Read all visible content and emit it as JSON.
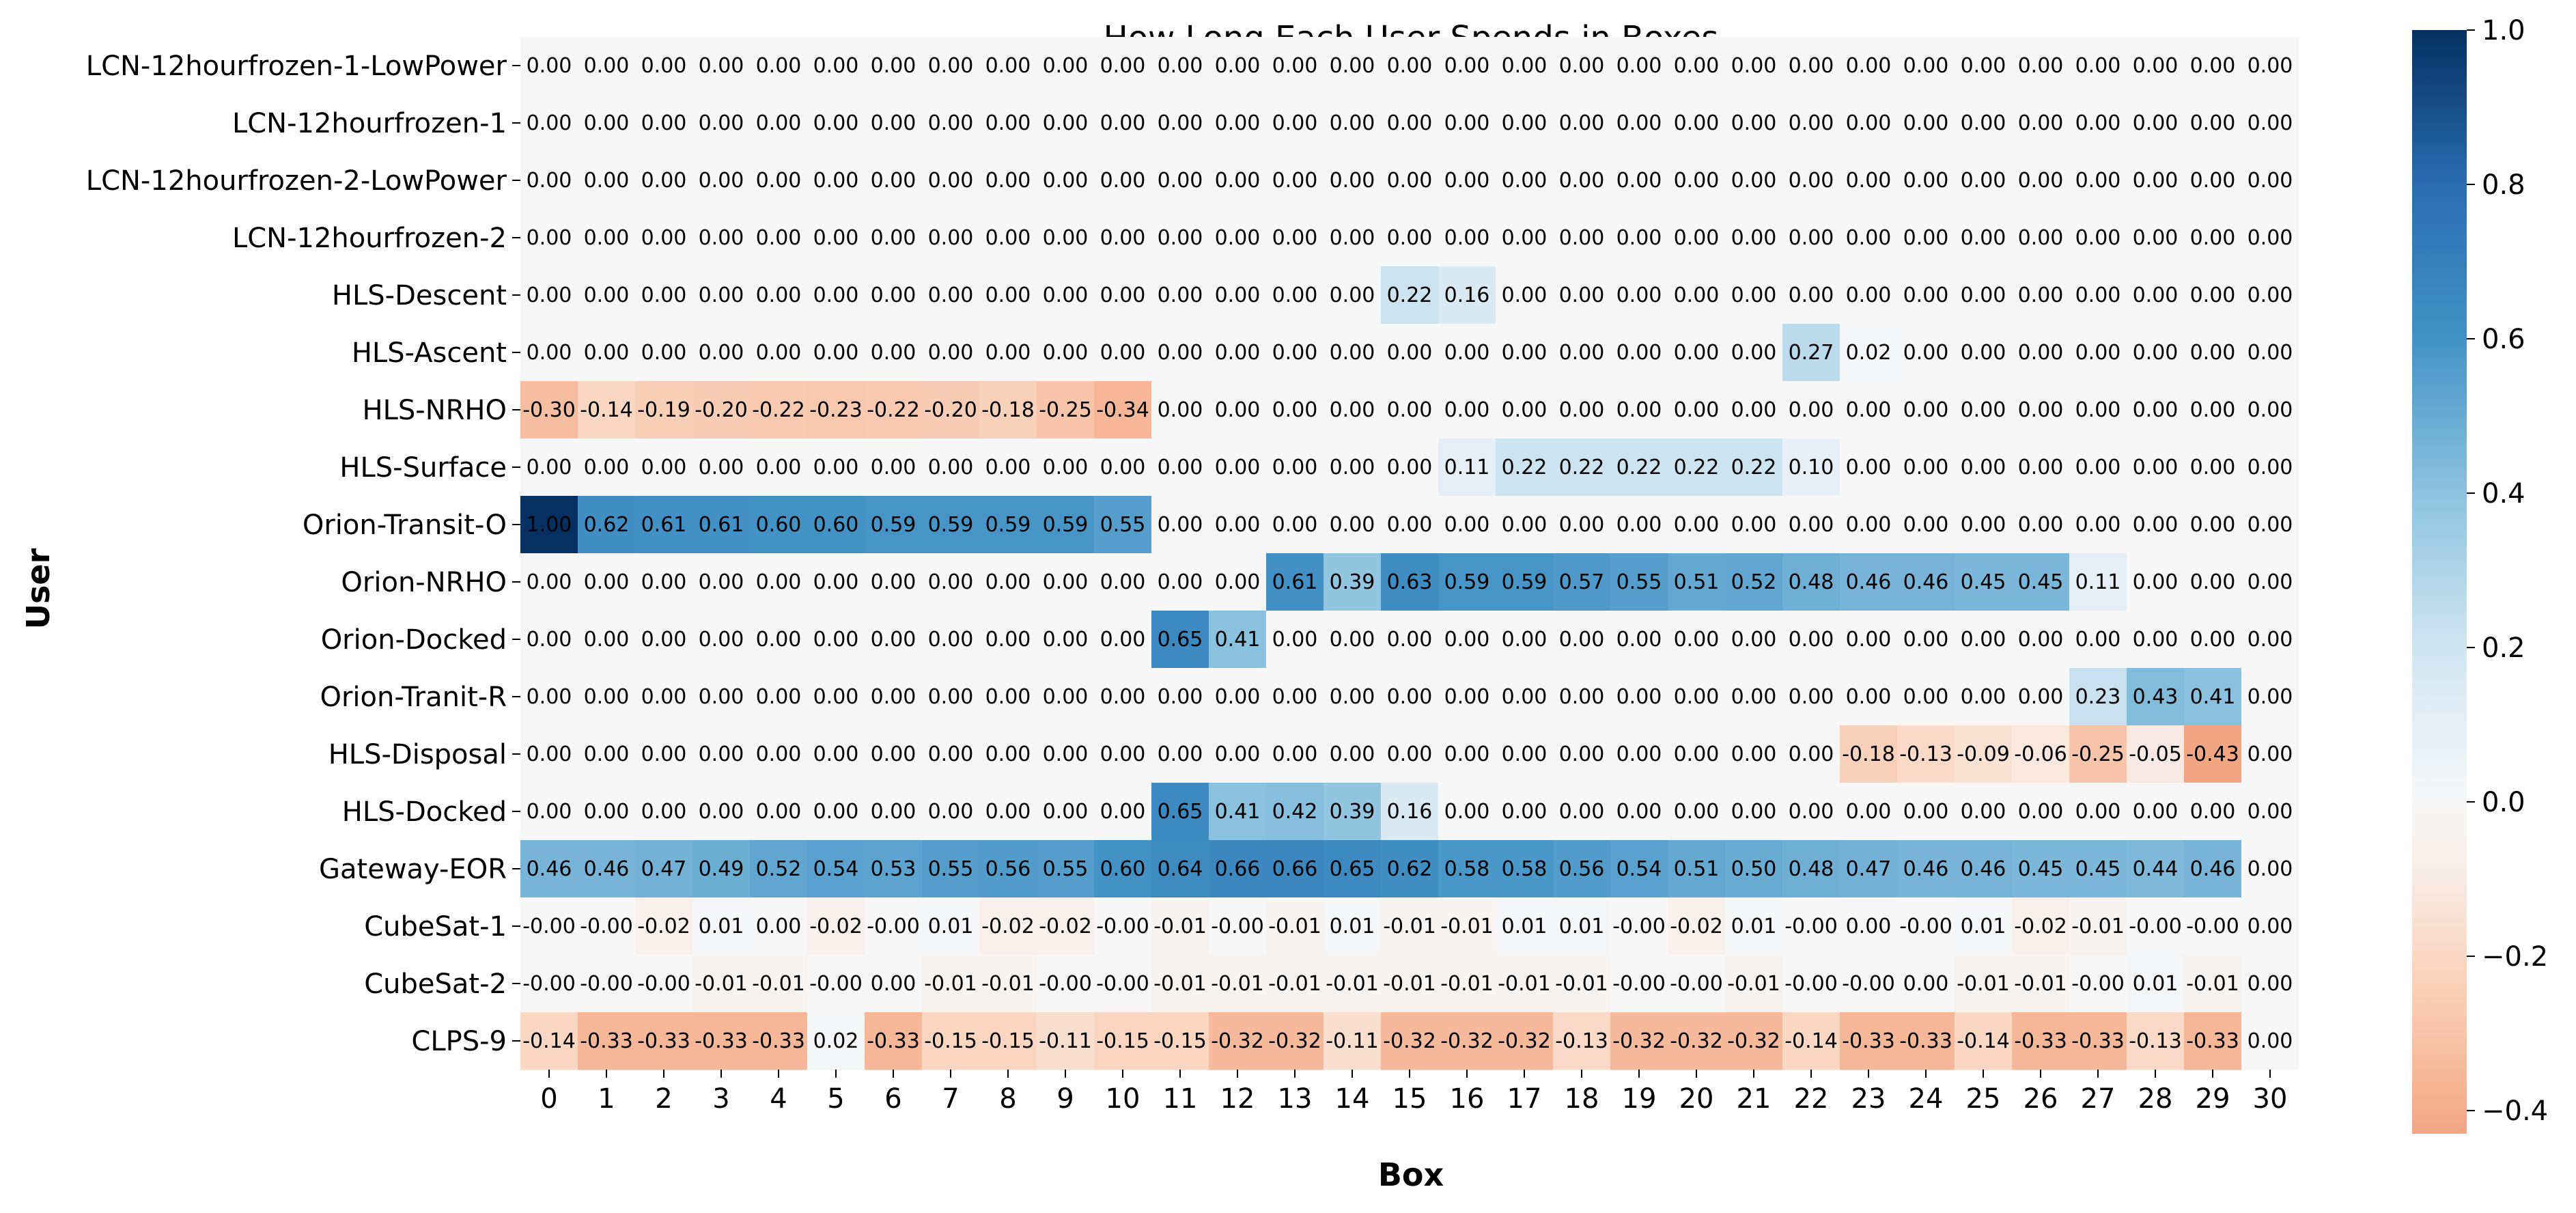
{
  "chart_data": {
    "type": "heatmap",
    "title": "How Long Each User Spends in Boxes",
    "xlabel": "Box",
    "ylabel": "User",
    "grid": false,
    "colorbar": {
      "position": "right",
      "vmin": -0.43,
      "vmax": 1.0,
      "ticks": [
        "1.0",
        "0.8",
        "0.6",
        "0.4",
        "0.2",
        "0.0",
        "-0.2",
        "-0.4"
      ],
      "tick_values": [
        1.0,
        0.8,
        0.6,
        0.4,
        0.2,
        0.0,
        -0.2,
        -0.4
      ],
      "colormap": "diverging orange-white-blue"
    },
    "x_categories": [
      "0",
      "1",
      "2",
      "3",
      "4",
      "5",
      "6",
      "7",
      "8",
      "9",
      "10",
      "11",
      "12",
      "13",
      "14",
      "15",
      "16",
      "17",
      "18",
      "19",
      "20",
      "21",
      "22",
      "23",
      "24",
      "25",
      "26",
      "27",
      "28",
      "29",
      "30"
    ],
    "y_categories": [
      "LCN-12hourfrozen-1-LowPower",
      "LCN-12hourfrozen-1",
      "LCN-12hourfrozen-2-LowPower",
      "LCN-12hourfrozen-2",
      "HLS-Descent",
      "HLS-Ascent",
      "HLS-NRHO",
      "HLS-Surface",
      "Orion-Transit-O",
      "Orion-NRHO",
      "Orion-Docked",
      "Orion-Tranit-R",
      "HLS-Disposal",
      "HLS-Docked",
      "Gateway-EOR",
      "CubeSat-1",
      "CubeSat-2",
      "CLPS-9"
    ],
    "labels": [
      [
        "0.00",
        "0.00",
        "0.00",
        "0.00",
        "0.00",
        "0.00",
        "0.00",
        "0.00",
        "0.00",
        "0.00",
        "0.00",
        "0.00",
        "0.00",
        "0.00",
        "0.00",
        "0.00",
        "0.00",
        "0.00",
        "0.00",
        "0.00",
        "0.00",
        "0.00",
        "0.00",
        "0.00",
        "0.00",
        "0.00",
        "0.00",
        "0.00",
        "0.00",
        "0.00",
        "0.00"
      ],
      [
        "0.00",
        "0.00",
        "0.00",
        "0.00",
        "0.00",
        "0.00",
        "0.00",
        "0.00",
        "0.00",
        "0.00",
        "0.00",
        "0.00",
        "0.00",
        "0.00",
        "0.00",
        "0.00",
        "0.00",
        "0.00",
        "0.00",
        "0.00",
        "0.00",
        "0.00",
        "0.00",
        "0.00",
        "0.00",
        "0.00",
        "0.00",
        "0.00",
        "0.00",
        "0.00",
        "0.00"
      ],
      [
        "0.00",
        "0.00",
        "0.00",
        "0.00",
        "0.00",
        "0.00",
        "0.00",
        "0.00",
        "0.00",
        "0.00",
        "0.00",
        "0.00",
        "0.00",
        "0.00",
        "0.00",
        "0.00",
        "0.00",
        "0.00",
        "0.00",
        "0.00",
        "0.00",
        "0.00",
        "0.00",
        "0.00",
        "0.00",
        "0.00",
        "0.00",
        "0.00",
        "0.00",
        "0.00",
        "0.00"
      ],
      [
        "0.00",
        "0.00",
        "0.00",
        "0.00",
        "0.00",
        "0.00",
        "0.00",
        "0.00",
        "0.00",
        "0.00",
        "0.00",
        "0.00",
        "0.00",
        "0.00",
        "0.00",
        "0.00",
        "0.00",
        "0.00",
        "0.00",
        "0.00",
        "0.00",
        "0.00",
        "0.00",
        "0.00",
        "0.00",
        "0.00",
        "0.00",
        "0.00",
        "0.00",
        "0.00",
        "0.00"
      ],
      [
        "0.00",
        "0.00",
        "0.00",
        "0.00",
        "0.00",
        "0.00",
        "0.00",
        "0.00",
        "0.00",
        "0.00",
        "0.00",
        "0.00",
        "0.00",
        "0.00",
        "0.00",
        "0.22",
        "0.16",
        "0.00",
        "0.00",
        "0.00",
        "0.00",
        "0.00",
        "0.00",
        "0.00",
        "0.00",
        "0.00",
        "0.00",
        "0.00",
        "0.00",
        "0.00",
        "0.00"
      ],
      [
        "0.00",
        "0.00",
        "0.00",
        "0.00",
        "0.00",
        "0.00",
        "0.00",
        "0.00",
        "0.00",
        "0.00",
        "0.00",
        "0.00",
        "0.00",
        "0.00",
        "0.00",
        "0.00",
        "0.00",
        "0.00",
        "0.00",
        "0.00",
        "0.00",
        "0.00",
        "0.27",
        "0.02",
        "0.00",
        "0.00",
        "0.00",
        "0.00",
        "0.00",
        "0.00",
        "0.00"
      ],
      [
        "-0.30",
        "-0.14",
        "-0.19",
        "-0.20",
        "-0.22",
        "-0.23",
        "-0.22",
        "-0.20",
        "-0.18",
        "-0.25",
        "-0.34",
        "0.00",
        "0.00",
        "0.00",
        "0.00",
        "0.00",
        "0.00",
        "0.00",
        "0.00",
        "0.00",
        "0.00",
        "0.00",
        "0.00",
        "0.00",
        "0.00",
        "0.00",
        "0.00",
        "0.00",
        "0.00",
        "0.00",
        "0.00"
      ],
      [
        "0.00",
        "0.00",
        "0.00",
        "0.00",
        "0.00",
        "0.00",
        "0.00",
        "0.00",
        "0.00",
        "0.00",
        "0.00",
        "0.00",
        "0.00",
        "0.00",
        "0.00",
        "0.00",
        "0.11",
        "0.22",
        "0.22",
        "0.22",
        "0.22",
        "0.22",
        "0.10",
        "0.00",
        "0.00",
        "0.00",
        "0.00",
        "0.00",
        "0.00",
        "0.00",
        "0.00"
      ],
      [
        "1.00",
        "0.62",
        "0.61",
        "0.61",
        "0.60",
        "0.60",
        "0.59",
        "0.59",
        "0.59",
        "0.59",
        "0.55",
        "0.00",
        "0.00",
        "0.00",
        "0.00",
        "0.00",
        "0.00",
        "0.00",
        "0.00",
        "0.00",
        "0.00",
        "0.00",
        "0.00",
        "0.00",
        "0.00",
        "0.00",
        "0.00",
        "0.00",
        "0.00",
        "0.00",
        "0.00"
      ],
      [
        "0.00",
        "0.00",
        "0.00",
        "0.00",
        "0.00",
        "0.00",
        "0.00",
        "0.00",
        "0.00",
        "0.00",
        "0.00",
        "0.00",
        "0.00",
        "0.61",
        "0.39",
        "0.63",
        "0.59",
        "0.59",
        "0.57",
        "0.55",
        "0.51",
        "0.52",
        "0.48",
        "0.46",
        "0.46",
        "0.45",
        "0.45",
        "0.11",
        "0.00",
        "0.00",
        "0.00"
      ],
      [
        "0.00",
        "0.00",
        "0.00",
        "0.00",
        "0.00",
        "0.00",
        "0.00",
        "0.00",
        "0.00",
        "0.00",
        "0.00",
        "0.65",
        "0.41",
        "0.00",
        "0.00",
        "0.00",
        "0.00",
        "0.00",
        "0.00",
        "0.00",
        "0.00",
        "0.00",
        "0.00",
        "0.00",
        "0.00",
        "0.00",
        "0.00",
        "0.00",
        "0.00",
        "0.00",
        "0.00"
      ],
      [
        "0.00",
        "0.00",
        "0.00",
        "0.00",
        "0.00",
        "0.00",
        "0.00",
        "0.00",
        "0.00",
        "0.00",
        "0.00",
        "0.00",
        "0.00",
        "0.00",
        "0.00",
        "0.00",
        "0.00",
        "0.00",
        "0.00",
        "0.00",
        "0.00",
        "0.00",
        "0.00",
        "0.00",
        "0.00",
        "0.00",
        "0.00",
        "0.23",
        "0.43",
        "0.41",
        "0.00"
      ],
      [
        "0.00",
        "0.00",
        "0.00",
        "0.00",
        "0.00",
        "0.00",
        "0.00",
        "0.00",
        "0.00",
        "0.00",
        "0.00",
        "0.00",
        "0.00",
        "0.00",
        "0.00",
        "0.00",
        "0.00",
        "0.00",
        "0.00",
        "0.00",
        "0.00",
        "0.00",
        "0.00",
        "-0.18",
        "-0.13",
        "-0.09",
        "-0.06",
        "-0.25",
        "-0.05",
        "-0.43",
        "0.00"
      ],
      [
        "0.00",
        "0.00",
        "0.00",
        "0.00",
        "0.00",
        "0.00",
        "0.00",
        "0.00",
        "0.00",
        "0.00",
        "0.00",
        "0.65",
        "0.41",
        "0.42",
        "0.39",
        "0.16",
        "0.00",
        "0.00",
        "0.00",
        "0.00",
        "0.00",
        "0.00",
        "0.00",
        "0.00",
        "0.00",
        "0.00",
        "0.00",
        "0.00",
        "0.00",
        "0.00",
        "0.00"
      ],
      [
        "0.46",
        "0.46",
        "0.47",
        "0.49",
        "0.52",
        "0.54",
        "0.53",
        "0.55",
        "0.56",
        "0.55",
        "0.60",
        "0.64",
        "0.66",
        "0.66",
        "0.65",
        "0.62",
        "0.58",
        "0.58",
        "0.56",
        "0.54",
        "0.51",
        "0.50",
        "0.48",
        "0.47",
        "0.46",
        "0.46",
        "0.45",
        "0.45",
        "0.44",
        "0.46",
        "0.00"
      ],
      [
        "-0.00",
        "-0.00",
        "-0.02",
        "0.01",
        "0.00",
        "-0.02",
        "-0.00",
        "0.01",
        "-0.02",
        "-0.02",
        "-0.00",
        "-0.01",
        "-0.00",
        "-0.01",
        "0.01",
        "-0.01",
        "-0.01",
        "0.01",
        "0.01",
        "-0.00",
        "-0.02",
        "0.01",
        "-0.00",
        "0.00",
        "-0.00",
        "0.01",
        "-0.02",
        "-0.01",
        "-0.00",
        "-0.00",
        "0.00"
      ],
      [
        "-0.00",
        "-0.00",
        "-0.00",
        "-0.01",
        "-0.01",
        "-0.00",
        "0.00",
        "-0.01",
        "-0.01",
        "-0.00",
        "-0.00",
        "-0.01",
        "-0.01",
        "-0.01",
        "-0.01",
        "-0.01",
        "-0.01",
        "-0.01",
        "-0.01",
        "-0.00",
        "-0.00",
        "-0.01",
        "-0.00",
        "-0.00",
        "0.00",
        "-0.01",
        "-0.01",
        "-0.00",
        "0.01",
        "-0.01",
        "0.00"
      ],
      [
        "-0.14",
        "-0.33",
        "-0.33",
        "-0.33",
        "-0.33",
        "0.02",
        "-0.33",
        "-0.15",
        "-0.15",
        "-0.11",
        "-0.15",
        "-0.15",
        "-0.32",
        "-0.32",
        "-0.11",
        "-0.32",
        "-0.32",
        "-0.32",
        "-0.13",
        "-0.32",
        "-0.32",
        "-0.32",
        "-0.14",
        "-0.33",
        "-0.33",
        "-0.14",
        "-0.33",
        "-0.33",
        "-0.13",
        "-0.33",
        "0.00"
      ]
    ]
  }
}
